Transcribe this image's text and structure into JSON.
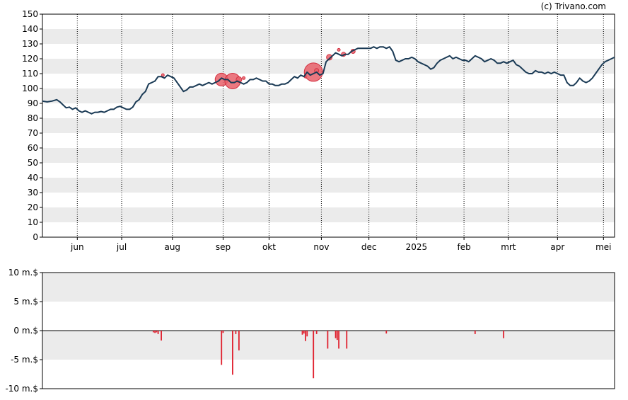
{
  "copyright": "(c) Trivano.com",
  "colors": {
    "line": "#1a3a55",
    "bubble_fill": "#e8606a",
    "bubble_stroke": "#d32f3f",
    "bar": "#e0202e",
    "band": "#ebebeb",
    "grid": "#000000"
  },
  "chart_data": [
    {
      "type": "line",
      "title": "",
      "xlabel": "",
      "ylabel": "",
      "ylim": [
        0,
        150
      ],
      "yticks": [
        "150",
        "140",
        "130",
        "120",
        "110",
        "100",
        "90",
        "80",
        "70",
        "60",
        "50",
        "40",
        "30",
        "20",
        "10",
        "0"
      ],
      "xticks": [
        "jun",
        "jul",
        "aug",
        "sep",
        "okt",
        "nov",
        "dec",
        "2025",
        "feb",
        "mrt",
        "apr",
        "mei"
      ],
      "x_day_range": [
        0,
        361
      ],
      "xtick_days": [
        22,
        50,
        82,
        114,
        143,
        176,
        206,
        236,
        266,
        294,
        325,
        354
      ],
      "grid": "vertical dotted at month ticks, horizontal alternating bands",
      "series": [
        {
          "name": "",
          "points": [
            [
              0,
              91.5
            ],
            [
              3,
              91
            ],
            [
              6,
              91.5
            ],
            [
              9,
              92.5
            ],
            [
              11,
              91
            ],
            [
              13,
              89
            ],
            [
              15,
              87
            ],
            [
              17,
              87.5
            ],
            [
              19,
              86
            ],
            [
              21,
              87
            ],
            [
              23,
              85
            ],
            [
              25,
              84
            ],
            [
              27,
              85
            ],
            [
              29,
              84
            ],
            [
              31,
              83
            ],
            [
              33,
              84
            ],
            [
              35,
              84
            ],
            [
              37,
              84.5
            ],
            [
              39,
              84
            ],
            [
              41,
              85
            ],
            [
              43,
              86
            ],
            [
              45,
              86
            ],
            [
              47,
              87.5
            ],
            [
              49,
              88
            ],
            [
              51,
              87
            ],
            [
              53,
              86
            ],
            [
              55,
              86
            ],
            [
              57,
              87.5
            ],
            [
              59,
              91
            ],
            [
              61,
              92.5
            ],
            [
              63,
              96
            ],
            [
              65,
              98
            ],
            [
              67,
              103
            ],
            [
              69,
              104
            ],
            [
              71,
              105
            ],
            [
              73,
              108
            ],
            [
              75,
              108
            ],
            [
              77,
              107
            ],
            [
              79,
              109
            ],
            [
              81,
              108
            ],
            [
              83,
              107
            ],
            [
              85,
              104
            ],
            [
              87,
              101
            ],
            [
              89,
              98
            ],
            [
              91,
              99
            ],
            [
              93,
              101
            ],
            [
              95,
              101
            ],
            [
              97,
              102
            ],
            [
              99,
              103
            ],
            [
              101,
              102
            ],
            [
              103,
              103
            ],
            [
              105,
              104
            ],
            [
              107,
              103
            ],
            [
              109,
              104
            ],
            [
              111,
              105
            ],
            [
              113,
              107
            ],
            [
              115,
              106
            ],
            [
              117,
              106
            ],
            [
              119,
              104
            ],
            [
              121,
              104
            ],
            [
              123,
              105
            ],
            [
              125,
              104
            ],
            [
              127,
              103
            ],
            [
              129,
              104
            ],
            [
              131,
              106
            ],
            [
              133,
              106
            ],
            [
              135,
              107
            ],
            [
              137,
              106
            ],
            [
              139,
              105
            ],
            [
              141,
              105
            ],
            [
              143,
              103
            ],
            [
              145,
              103
            ],
            [
              147,
              102
            ],
            [
              149,
              102
            ],
            [
              151,
              103
            ],
            [
              153,
              103
            ],
            [
              155,
              104
            ],
            [
              157,
              106
            ],
            [
              159,
              108
            ],
            [
              161,
              107
            ],
            [
              163,
              109
            ],
            [
              165,
              108
            ],
            [
              167,
              111
            ],
            [
              169,
              109
            ],
            [
              171,
              110
            ],
            [
              173,
              111
            ],
            [
              175,
              109
            ],
            [
              177,
              110
            ],
            [
              179,
              118
            ],
            [
              181,
              120
            ],
            [
              183,
              122
            ],
            [
              185,
              124
            ],
            [
              187,
              123
            ],
            [
              189,
              122
            ],
            [
              191,
              123
            ],
            [
              193,
              123
            ],
            [
              195,
              125
            ],
            [
              197,
              126
            ],
            [
              199,
              127
            ],
            [
              201,
              127
            ],
            [
              203,
              127
            ],
            [
              205,
              127
            ],
            [
              207,
              127
            ],
            [
              209,
              128
            ],
            [
              211,
              127
            ],
            [
              213,
              128
            ],
            [
              215,
              128
            ],
            [
              217,
              127
            ],
            [
              219,
              128
            ],
            [
              221,
              125
            ],
            [
              223,
              119
            ],
            [
              225,
              118
            ],
            [
              227,
              119
            ],
            [
              229,
              120
            ],
            [
              231,
              120
            ],
            [
              233,
              121
            ],
            [
              235,
              120
            ],
            [
              237,
              118
            ],
            [
              239,
              117
            ],
            [
              241,
              116
            ],
            [
              243,
              115
            ],
            [
              245,
              113
            ],
            [
              247,
              114
            ],
            [
              249,
              117
            ],
            [
              251,
              119
            ],
            [
              253,
              120
            ],
            [
              255,
              121
            ],
            [
              257,
              122
            ],
            [
              259,
              120
            ],
            [
              261,
              121
            ],
            [
              263,
              120
            ],
            [
              265,
              119
            ],
            [
              267,
              119
            ],
            [
              269,
              118
            ],
            [
              271,
              120
            ],
            [
              273,
              122
            ],
            [
              275,
              121
            ],
            [
              277,
              120
            ],
            [
              279,
              118
            ],
            [
              281,
              119
            ],
            [
              283,
              120
            ],
            [
              285,
              119
            ],
            [
              287,
              117
            ],
            [
              289,
              117
            ],
            [
              291,
              118
            ],
            [
              293,
              117
            ],
            [
              295,
              118
            ],
            [
              297,
              119
            ],
            [
              299,
              116
            ],
            [
              301,
              115
            ],
            [
              303,
              113
            ],
            [
              305,
              111
            ],
            [
              307,
              110
            ],
            [
              309,
              110
            ],
            [
              311,
              112
            ],
            [
              313,
              111
            ],
            [
              315,
              111
            ],
            [
              317,
              110
            ],
            [
              319,
              111
            ],
            [
              321,
              110
            ],
            [
              323,
              111
            ],
            [
              325,
              110
            ],
            [
              327,
              109
            ],
            [
              329,
              109
            ],
            [
              331,
              104
            ],
            [
              333,
              102
            ],
            [
              335,
              102
            ],
            [
              337,
              104
            ],
            [
              339,
              107
            ],
            [
              341,
              105
            ],
            [
              343,
              104
            ],
            [
              345,
              105
            ],
            [
              347,
              107
            ],
            [
              349,
              110
            ],
            [
              351,
              113
            ],
            [
              353,
              116
            ],
            [
              355,
              118
            ],
            [
              357,
              119
            ],
            [
              359,
              120
            ],
            [
              361,
              121
            ]
          ]
        }
      ],
      "markers": [
        {
          "day": 76,
          "value": 109,
          "r": 2
        },
        {
          "day": 113,
          "value": 106,
          "r": 9
        },
        {
          "day": 120,
          "value": 105,
          "r": 11
        },
        {
          "day": 124,
          "value": 106,
          "r": 4
        },
        {
          "day": 127,
          "value": 107,
          "r": 2
        },
        {
          "day": 166,
          "value": 108,
          "r": 2
        },
        {
          "day": 171,
          "value": 111,
          "r": 13
        },
        {
          "day": 173,
          "value": 112,
          "r": 3
        },
        {
          "day": 181,
          "value": 121,
          "r": 4
        },
        {
          "day": 187,
          "value": 126,
          "r": 2
        },
        {
          "day": 190,
          "value": 123,
          "r": 3
        },
        {
          "day": 196,
          "value": 125,
          "r": 3
        }
      ]
    },
    {
      "type": "bar",
      "title": "",
      "xlabel": "",
      "ylabel": "",
      "ylim": [
        -10,
        10
      ],
      "yticks": [
        "10 m.$",
        "5 m.$",
        "0 m.$",
        "-5 m.$",
        "-10 m.$"
      ],
      "grid": "horizontal alternating bands, baseline at 0",
      "bars": [
        [
          70,
          -0.3
        ],
        [
          71,
          -0.4
        ],
        [
          72,
          -0.3
        ],
        [
          73,
          -0.6
        ],
        [
          75,
          -1.7
        ],
        [
          113,
          -5.9
        ],
        [
          114,
          -0.4
        ],
        [
          120,
          -7.6
        ],
        [
          122,
          -0.6
        ],
        [
          124,
          -3.4
        ],
        [
          164,
          -0.7
        ],
        [
          165,
          -0.5
        ],
        [
          166,
          -1.8
        ],
        [
          167,
          -1.0
        ],
        [
          171,
          -8.2
        ],
        [
          173,
          -0.6
        ],
        [
          180,
          -3.1
        ],
        [
          185,
          -1.3
        ],
        [
          186,
          -1.6
        ],
        [
          187,
          -3.1
        ],
        [
          192,
          -3.1
        ],
        [
          217,
          -0.5
        ],
        [
          273,
          -0.6
        ],
        [
          291,
          -1.3
        ]
      ]
    }
  ]
}
